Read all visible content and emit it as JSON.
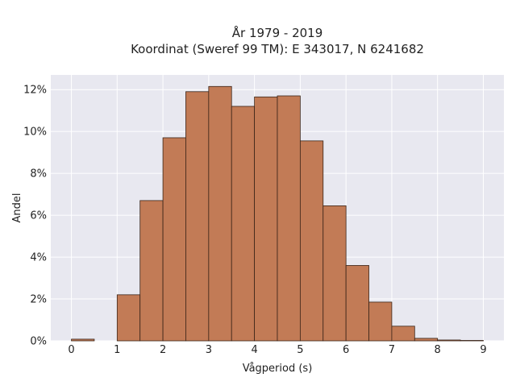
{
  "chart_data": {
    "type": "bar",
    "title_line1": "År 1979 - 2019",
    "title_line2": "Koordinat (Sweref 99 TM): E 343017, N 6241682",
    "xlabel": "Vågperiod (s)",
    "ylabel": "Andel",
    "bin_width": 0.5,
    "bins": [
      {
        "start": 0.0,
        "value": 0.08
      },
      {
        "start": 0.5,
        "value": 0.0
      },
      {
        "start": 1.0,
        "value": 2.2
      },
      {
        "start": 1.5,
        "value": 6.7
      },
      {
        "start": 2.0,
        "value": 9.7
      },
      {
        "start": 2.5,
        "value": 11.9
      },
      {
        "start": 3.0,
        "value": 12.15
      },
      {
        "start": 3.5,
        "value": 11.2
      },
      {
        "start": 4.0,
        "value": 11.65
      },
      {
        "start": 4.5,
        "value": 11.7
      },
      {
        "start": 5.0,
        "value": 9.55
      },
      {
        "start": 5.5,
        "value": 6.45
      },
      {
        "start": 6.0,
        "value": 3.6
      },
      {
        "start": 6.5,
        "value": 1.85
      },
      {
        "start": 7.0,
        "value": 0.7
      },
      {
        "start": 7.5,
        "value": 0.12
      },
      {
        "start": 8.0,
        "value": 0.04
      },
      {
        "start": 8.5,
        "value": 0.02
      }
    ],
    "xlim": [
      -0.45,
      9.45
    ],
    "ylim": [
      0,
      12.7
    ],
    "x_ticks": [
      0,
      1,
      2,
      3,
      4,
      5,
      6,
      7,
      8,
      9
    ],
    "y_ticks": [
      0,
      2,
      4,
      6,
      8,
      10,
      12
    ],
    "y_tick_suffix": "%",
    "grid": true,
    "colors": {
      "bar_fill": "#c27b56",
      "bar_stroke": "#3a2418",
      "plot_background": "#e8e8f0",
      "grid": "#ffffff"
    }
  }
}
